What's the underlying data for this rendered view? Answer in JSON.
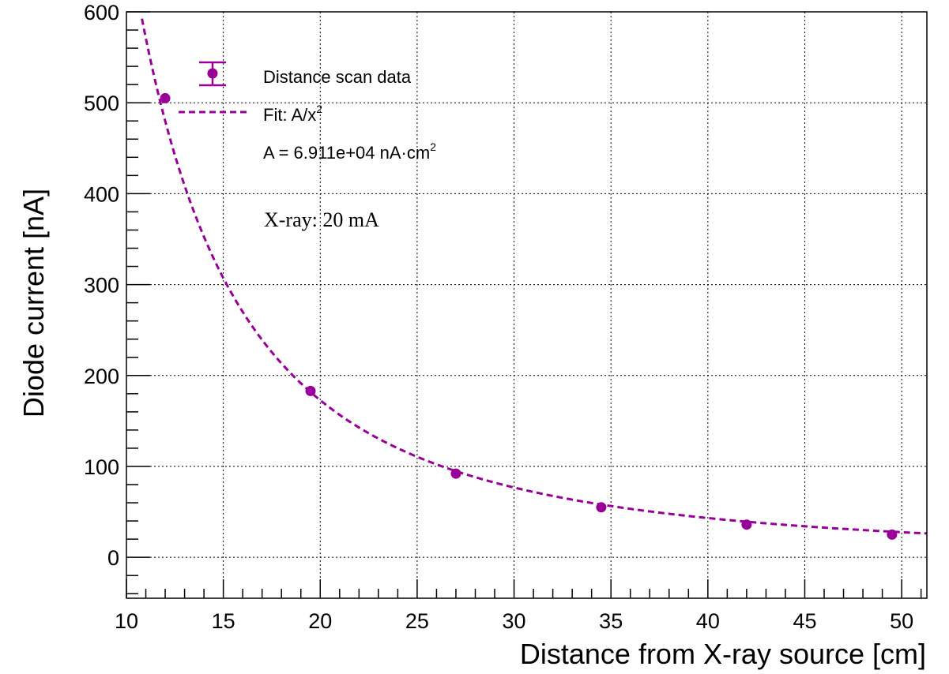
{
  "chart_data": {
    "type": "scatter",
    "title": "",
    "xlabel": "Distance from X-ray source [cm]",
    "ylabel": "Diode current [nA]",
    "xlim": [
      10,
      51.3
    ],
    "ylim": [
      -45,
      600
    ],
    "x_ticks": [
      10,
      15,
      20,
      25,
      30,
      35,
      40,
      45,
      50
    ],
    "x_tick_labels": [
      "10",
      "15",
      "20",
      "25",
      "30",
      "35",
      "40",
      "45",
      "50"
    ],
    "y_ticks": [
      0,
      100,
      200,
      300,
      400,
      500,
      600
    ],
    "y_tick_labels": [
      "0",
      "100",
      "200",
      "300",
      "400",
      "500",
      "600"
    ],
    "grid": true,
    "legend_position": "top-left",
    "series": [
      {
        "name": "Distance scan data",
        "kind": "points-with-errors",
        "color": "#990099",
        "x": [
          12,
          19.5,
          27,
          34.5,
          42,
          49.5
        ],
        "y": [
          505,
          183,
          92,
          55,
          36,
          25
        ]
      },
      {
        "name": "Fit: A/x",
        "name_superscript": "2",
        "kind": "fit-curve",
        "color": "#990099",
        "A": 69110
      }
    ],
    "annotations": {
      "fit_param_text": "A = 6.911e+04 nA·cm",
      "fit_param_superscript": "2",
      "xray_text": "X-ray: 20 mA"
    }
  }
}
